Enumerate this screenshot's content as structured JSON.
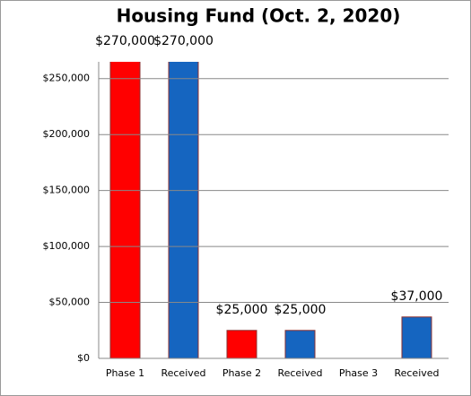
{
  "chart_data": {
    "type": "bar",
    "title": "Housing Fund (Oct. 2, 2020)",
    "categories": [
      "Phase 1",
      "Received",
      "Phase 2",
      "Received",
      "Phase 3",
      "Received"
    ],
    "values": [
      270000,
      270000,
      25000,
      25000,
      null,
      37000
    ],
    "value_labels": [
      "$270,000",
      "$270,000",
      "$25,000",
      "$25,000",
      null,
      "$37,000"
    ],
    "colors": [
      "#ff0000",
      "#1565c0",
      "#ff0000",
      "#1565c0",
      "#ff0000",
      "#1565c0"
    ],
    "ylim": [
      0,
      265000
    ],
    "yticks": [
      {
        "value": 0,
        "label": "$0"
      },
      {
        "value": 50000,
        "label": "$50,000"
      },
      {
        "value": 100000,
        "label": "$100,000"
      },
      {
        "value": 150000,
        "label": "$150,000"
      },
      {
        "value": 200000,
        "label": "$200,000"
      },
      {
        "value": 250000,
        "label": "$250,000"
      }
    ],
    "grid": true
  }
}
